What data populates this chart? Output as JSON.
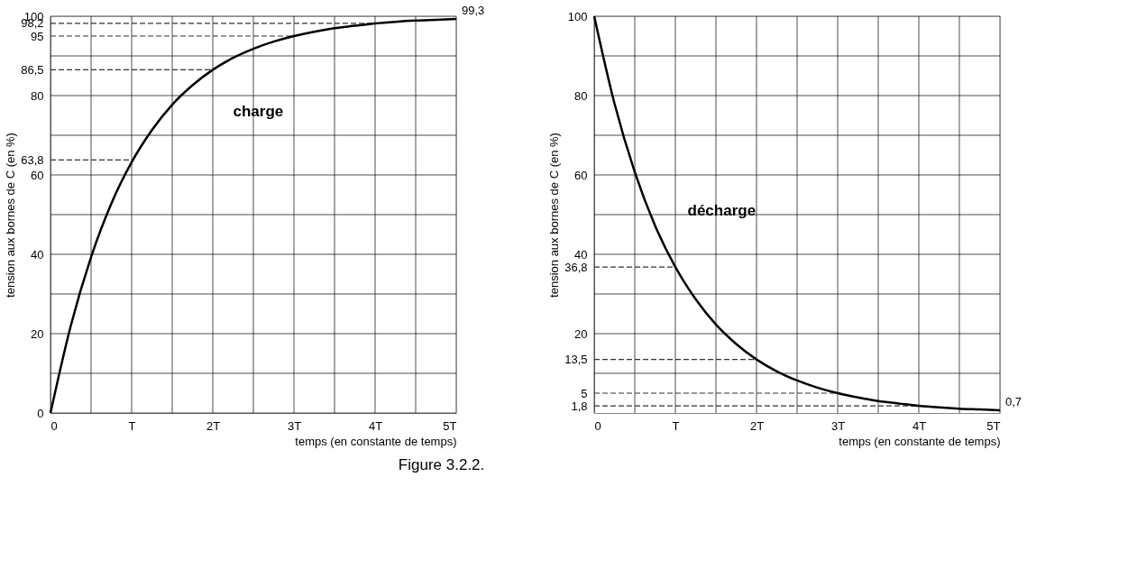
{
  "chart_data": [
    {
      "type": "line",
      "xlabel": "temps (en constante de temps)",
      "ylabel": "tension aux bornes de C (en %)",
      "x": [
        0,
        0.25,
        0.5,
        0.75,
        1,
        1.25,
        1.5,
        1.75,
        2,
        2.25,
        2.5,
        2.75,
        3,
        3.25,
        3.5,
        3.75,
        4,
        4.25,
        4.5,
        4.75,
        5
      ],
      "series": [
        {
          "color": "#000000",
          "values": [
            0,
            22,
            39.3,
            52.8,
            63.2,
            71.3,
            77.7,
            82.6,
            86.5,
            89.5,
            91.8,
            93.6,
            95,
            96.1,
            97,
            97.6,
            98.2,
            98.6,
            98.9,
            99.1,
            99.3
          ]
        }
      ],
      "xlim": [
        0,
        5
      ],
      "ylim": [
        0,
        100
      ],
      "xticks": [
        0,
        {
          "value": 0.5,
          "label": null
        },
        {
          "value": 1,
          "label": "T"
        },
        {
          "value": 1.5,
          "label": null
        },
        {
          "value": 2,
          "label": "2T"
        },
        {
          "value": 2.5,
          "label": null
        },
        {
          "value": 3,
          "label": "3T"
        },
        {
          "value": 3.5,
          "label": null
        },
        {
          "value": 4,
          "label": "4T"
        },
        {
          "value": 4.5,
          "label": null
        },
        {
          "value": 5,
          "label": "5T"
        }
      ],
      "yticks": [
        0,
        {
          "value": 10,
          "label": null
        },
        20,
        {
          "value": 30,
          "label": null
        },
        40,
        {
          "value": 50,
          "label": null
        },
        60,
        {
          "value": 63.8,
          "label": "63,8"
        },
        {
          "value": 70,
          "label": null
        },
        80,
        {
          "value": 86.5,
          "label": "86,5"
        },
        {
          "value": 90,
          "label": null
        },
        95,
        {
          "value": 98.2,
          "label": "98,2"
        },
        100
      ],
      "grid": true,
      "marker": "none",
      "line_style": "solid",
      "ref_lines": [
        {
          "axis": "y",
          "value": 63.8,
          "line_style": "dashed"
        },
        {
          "axis": "y",
          "value": 86.5,
          "line_style": "dashed"
        },
        {
          "axis": "y",
          "value": 95,
          "line_style": "dashed"
        },
        {
          "axis": "y",
          "value": 98.2,
          "line_style": "dashed"
        }
      ],
      "title": "Figure 3.2.2.",
      "annotations": [
        "charge",
        {
          "text": "99,3",
          "x": 5,
          "y": 99.3
        }
      ]
    },
    {
      "type": "line",
      "xlabel": "temps (en constante de temps)",
      "ylabel": "tension aux bornes de C (en %)",
      "x": [
        0,
        0.25,
        0.5,
        0.75,
        1,
        1.25,
        1.5,
        1.75,
        2,
        2.25,
        2.5,
        2.75,
        3,
        3.25,
        3.5,
        3.75,
        4,
        4.25,
        4.5,
        4.75,
        5
      ],
      "series": [
        {
          "color": "#000000",
          "values": [
            100,
            78,
            60.7,
            47.2,
            36.8,
            28.7,
            22.3,
            17.4,
            13.5,
            10.5,
            8.2,
            6.4,
            5,
            3.9,
            3,
            2.4,
            1.8,
            1.4,
            1.1,
            0.9,
            0.7
          ]
        }
      ],
      "xlim": [
        0,
        5
      ],
      "ylim": [
        0,
        100
      ],
      "xticks": [
        0,
        {
          "value": 0.5,
          "label": null
        },
        {
          "value": 1,
          "label": "T"
        },
        {
          "value": 1.5,
          "label": null
        },
        {
          "value": 2,
          "label": "2T"
        },
        {
          "value": 2.5,
          "label": null
        },
        {
          "value": 3,
          "label": "3T"
        },
        {
          "value": 3.5,
          "label": null
        },
        {
          "value": 4,
          "label": "4T"
        },
        {
          "value": 4.5,
          "label": null
        },
        {
          "value": 5,
          "label": "5T"
        }
      ],
      "yticks": [
        {
          "value": 1.8,
          "label": "1,8"
        },
        5,
        {
          "value": 10,
          "label": null
        },
        {
          "value": 13.5,
          "label": "13,5"
        },
        20,
        {
          "value": 30,
          "label": null
        },
        {
          "value": 36.8,
          "label": "36,8"
        },
        40,
        {
          "value": 50,
          "label": null
        },
        60,
        {
          "value": 70,
          "label": null
        },
        80,
        {
          "value": 90,
          "label": null
        },
        100
      ],
      "grid": true,
      "marker": "none",
      "line_style": "solid",
      "ref_lines": [
        {
          "axis": "y",
          "value": 1.8,
          "line_style": "dashed"
        },
        {
          "axis": "y",
          "value": 5,
          "line_style": "dashed"
        },
        {
          "axis": "y",
          "value": 13.5,
          "line_style": "dashed"
        },
        {
          "axis": "y",
          "value": 36.8,
          "line_style": "dashed"
        }
      ],
      "annotations": [
        "décharge",
        {
          "text": "0,7",
          "x": 5,
          "y": 0.7
        }
      ]
    }
  ]
}
